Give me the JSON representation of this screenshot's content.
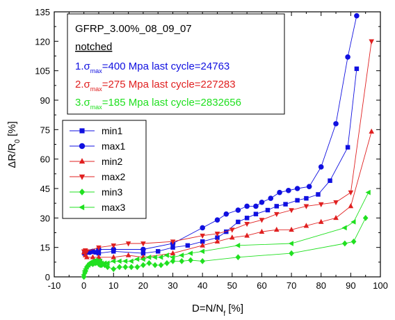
{
  "chart_data": {
    "type": "scatter",
    "title": "",
    "xlabel": "D=N/N_f [%]",
    "ylabel": "ΔR/R_0 [%]",
    "xlim": [
      -10,
      100
    ],
    "ylim": [
      0,
      135
    ],
    "xticks": [
      -10,
      0,
      10,
      20,
      30,
      40,
      50,
      60,
      70,
      80,
      90,
      100
    ],
    "yticks": [
      0,
      15,
      30,
      45,
      60,
      75,
      90,
      105,
      120,
      135
    ],
    "grid": false,
    "legend_position": "left-middle",
    "annotation": {
      "line1": "GFRP_3.00%_08_09_07",
      "line2": "notched",
      "items": [
        {
          "prefix": "1.σ",
          "sub": "max",
          "text": "=400 Mpa last cycle=24763",
          "color": "#1010e0"
        },
        {
          "prefix": "2.σ",
          "sub": "max",
          "text": "=275 Mpa last cycle=227283",
          "color": "#e02020"
        },
        {
          "prefix": "3.σ",
          "sub": "max",
          "text": "=185 Mpa last cycle=2832656",
          "color": "#20e020"
        }
      ]
    },
    "series": [
      {
        "name": "min1",
        "color": "#1010e0",
        "marker": "square",
        "points": [
          [
            0.2,
            12
          ],
          [
            0.5,
            12.5
          ],
          [
            1,
            12.5
          ],
          [
            2,
            12.8
          ],
          [
            3,
            13
          ],
          [
            4,
            12.5
          ],
          [
            5,
            12
          ],
          [
            10,
            13
          ],
          [
            20,
            12
          ],
          [
            25,
            13
          ],
          [
            30,
            15
          ],
          [
            35,
            16
          ],
          [
            40,
            18
          ],
          [
            45,
            20
          ],
          [
            48,
            23
          ],
          [
            52,
            28
          ],
          [
            55,
            30
          ],
          [
            58,
            32
          ],
          [
            62,
            34
          ],
          [
            65,
            36
          ],
          [
            68,
            37
          ],
          [
            72,
            39
          ],
          [
            75,
            40
          ],
          [
            79,
            42
          ],
          [
            83,
            49
          ],
          [
            89,
            66
          ],
          [
            92,
            106
          ]
        ]
      },
      {
        "name": "max1",
        "color": "#1010e0",
        "marker": "circle",
        "points": [
          [
            0.2,
            12
          ],
          [
            1,
            12.5
          ],
          [
            2,
            12.5
          ],
          [
            3,
            13
          ],
          [
            5,
            14
          ],
          [
            10,
            14
          ],
          [
            20,
            14
          ],
          [
            30,
            17
          ],
          [
            40,
            25
          ],
          [
            45,
            29
          ],
          [
            48,
            32
          ],
          [
            52,
            34
          ],
          [
            55,
            36
          ],
          [
            58,
            36
          ],
          [
            60,
            38
          ],
          [
            63,
            40
          ],
          [
            66,
            43
          ],
          [
            69,
            44
          ],
          [
            72,
            45
          ],
          [
            76,
            46
          ],
          [
            80,
            56
          ],
          [
            85,
            78
          ],
          [
            89,
            112
          ],
          [
            92,
            133
          ]
        ]
      },
      {
        "name": "min2",
        "color": "#e02020",
        "marker": "triangle-up",
        "points": [
          [
            0,
            12.5
          ],
          [
            0.5,
            11
          ],
          [
            1,
            10
          ],
          [
            3,
            10
          ],
          [
            5,
            10
          ],
          [
            10,
            10
          ],
          [
            15,
            11
          ],
          [
            20,
            10
          ],
          [
            30,
            12
          ],
          [
            40,
            16
          ],
          [
            45,
            18
          ],
          [
            50,
            20
          ],
          [
            55,
            21
          ],
          [
            60,
            23
          ],
          [
            65,
            24
          ],
          [
            70,
            24
          ],
          [
            75,
            26
          ],
          [
            80,
            28
          ],
          [
            85,
            30
          ],
          [
            90,
            36
          ],
          [
            97,
            74
          ]
        ]
      },
      {
        "name": "max2",
        "color": "#e02020",
        "marker": "triangle-down",
        "points": [
          [
            0,
            13
          ],
          [
            0.5,
            13.5
          ],
          [
            1,
            13
          ],
          [
            5,
            15
          ],
          [
            10,
            16
          ],
          [
            15,
            17
          ],
          [
            20,
            17
          ],
          [
            30,
            18
          ],
          [
            40,
            21
          ],
          [
            45,
            22
          ],
          [
            50,
            24
          ],
          [
            55,
            27
          ],
          [
            60,
            29
          ],
          [
            65,
            32
          ],
          [
            70,
            34
          ],
          [
            75,
            36
          ],
          [
            80,
            37
          ],
          [
            85,
            38
          ],
          [
            90,
            43
          ],
          [
            97,
            120
          ]
        ]
      },
      {
        "name": "min3",
        "color": "#20e020",
        "marker": "diamond",
        "points": [
          [
            0,
            0
          ],
          [
            0.3,
            2
          ],
          [
            0.6,
            3
          ],
          [
            1,
            5
          ],
          [
            1.5,
            6
          ],
          [
            2,
            6.5
          ],
          [
            2.5,
            7
          ],
          [
            3,
            6.5
          ],
          [
            3.5,
            7
          ],
          [
            4,
            7
          ],
          [
            4.5,
            7.5
          ],
          [
            5,
            6.5
          ],
          [
            5.5,
            6
          ],
          [
            6,
            6
          ],
          [
            7,
            6
          ],
          [
            8,
            5
          ],
          [
            10,
            4
          ],
          [
            12,
            5
          ],
          [
            14,
            5
          ],
          [
            16,
            5
          ],
          [
            18,
            5
          ],
          [
            20,
            6
          ],
          [
            22,
            7
          ],
          [
            24,
            6
          ],
          [
            26,
            6
          ],
          [
            28,
            7
          ],
          [
            30,
            8
          ],
          [
            33,
            8
          ],
          [
            36,
            8.5
          ],
          [
            40,
            8
          ],
          [
            52,
            10
          ],
          [
            70,
            12
          ],
          [
            88,
            17
          ],
          [
            91,
            18
          ],
          [
            95,
            30
          ]
        ]
      },
      {
        "name": "max3",
        "color": "#20e020",
        "marker": "triangle-left",
        "points": [
          [
            0,
            1
          ],
          [
            0.3,
            3
          ],
          [
            0.6,
            4
          ],
          [
            1,
            5
          ],
          [
            1.5,
            6
          ],
          [
            2,
            7
          ],
          [
            2.5,
            7.5
          ],
          [
            3,
            8
          ],
          [
            3.5,
            8
          ],
          [
            4,
            8.5
          ],
          [
            4.5,
            8
          ],
          [
            5,
            8
          ],
          [
            5.5,
            8
          ],
          [
            6,
            7
          ],
          [
            7,
            7
          ],
          [
            8,
            7
          ],
          [
            10,
            8
          ],
          [
            12,
            8
          ],
          [
            14,
            8
          ],
          [
            16,
            8
          ],
          [
            18,
            9
          ],
          [
            20,
            9
          ],
          [
            22,
            10
          ],
          [
            24,
            10
          ],
          [
            26,
            10
          ],
          [
            28,
            11
          ],
          [
            30,
            10
          ],
          [
            33,
            11
          ],
          [
            36,
            12
          ],
          [
            40,
            13
          ],
          [
            52,
            16
          ],
          [
            70,
            17
          ],
          [
            88,
            25
          ],
          [
            91,
            28
          ],
          [
            96,
            43
          ]
        ]
      }
    ]
  }
}
